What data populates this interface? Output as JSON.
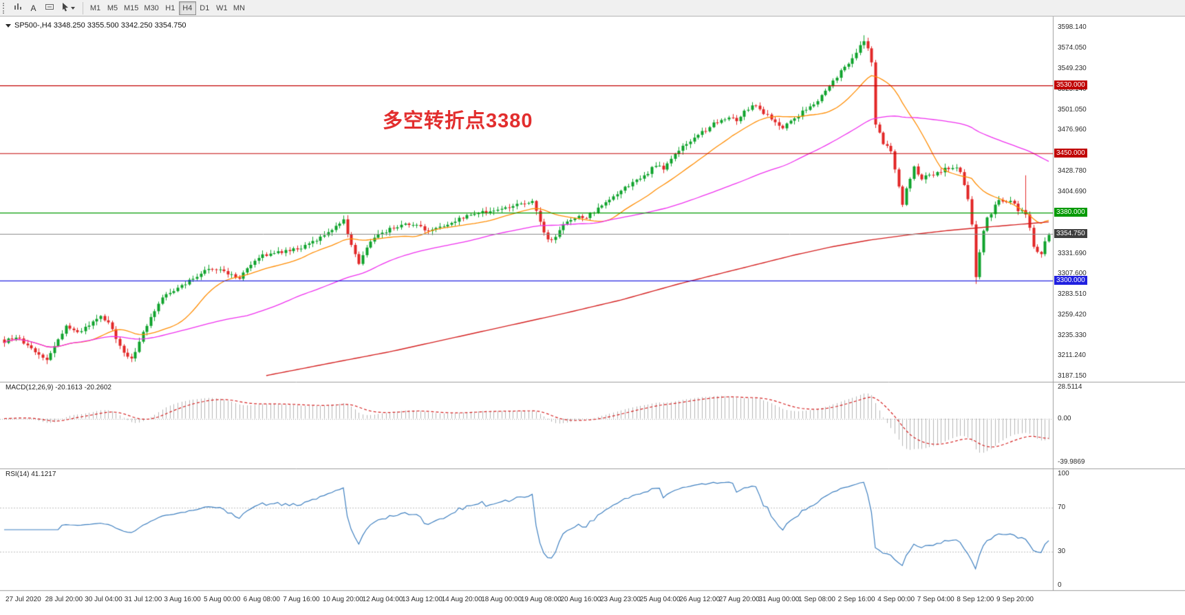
{
  "toolbar": {
    "text_tool_label": "A",
    "timeframes": [
      "M1",
      "M5",
      "M15",
      "M30",
      "H1",
      "H4",
      "D1",
      "W1",
      "MN"
    ],
    "active_timeframe": "H4"
  },
  "chart_data": {
    "type": "candlestick",
    "symbol": "SP500-",
    "timeframe": "H4",
    "header_text": "SP500-,H4  3348.250 3355.500 3342.250 3354.750",
    "ohlc_header": {
      "open": "3348.250",
      "high": "3355.500",
      "low": "3342.250",
      "close": "3354.750"
    },
    "annotation": {
      "text": "多空转折点3380",
      "color": "#e22e2e"
    },
    "bars": 272,
    "colors": {
      "up_candle": "#0fa32c",
      "down_candle": "#e22727",
      "ma_fast": "#ff8c00",
      "ma_mid": "#ee2eee",
      "ma_slow": "#d42020",
      "macd_hist": "#b4b4b4",
      "macd_signal": "#d42020",
      "rsi_line": "#3c7ebf",
      "current_price_line": "#8a8a8a"
    },
    "y_axis": {
      "min": 3187.15,
      "max": 3598.14,
      "labels": [
        "3598.140",
        "3574.050",
        "3549.230",
        "3525.140",
        "3501.050",
        "3476.960",
        "3428.780",
        "3404.690",
        "3331.690",
        "3307.600",
        "3283.510",
        "3259.420",
        "3235.330",
        "3211.240",
        "3187.150"
      ]
    },
    "x_axis": {
      "labels": [
        "27 Jul 2020",
        "28 Jul 20:00",
        "30 Jul 04:00",
        "31 Jul 12:00",
        "3 Aug 16:00",
        "5 Aug 00:00",
        "6 Aug 08:00",
        "7 Aug 16:00",
        "10 Aug 20:00",
        "12 Aug 04:00",
        "13 Aug 12:00",
        "14 Aug 20:00",
        "18 Aug 00:00",
        "19 Aug 08:00",
        "20 Aug 16:00",
        "23 Aug 23:00",
        "25 Aug 04:00",
        "26 Aug 12:00",
        "27 Aug 20:00",
        "31 Aug 00:00",
        "1 Sep 08:00",
        "2 Sep 16:00",
        "4 Sep 00:00",
        "7 Sep 04:00",
        "8 Sep 12:00",
        "9 Sep 20:00"
      ]
    },
    "hlines": [
      {
        "price": 3530.0,
        "label": "3530.000",
        "color": "#c00000"
      },
      {
        "price": 3450.0,
        "label": "3450.000",
        "color": "#c00000"
      },
      {
        "price": 3380.0,
        "label": "3380.000",
        "color": "#009a00"
      },
      {
        "price": 3300.0,
        "label": "3300.000",
        "color": "#2020e0"
      }
    ],
    "current_price": {
      "value": 3354.75,
      "label": "3354.750",
      "chip_color": "#3f3f3f"
    },
    "price_anchors": [
      [
        0,
        3228
      ],
      [
        3,
        3234
      ],
      [
        6,
        3222
      ],
      [
        8,
        3215
      ],
      [
        11,
        3207
      ],
      [
        14,
        3230
      ],
      [
        16,
        3246
      ],
      [
        19,
        3238
      ],
      [
        22,
        3247
      ],
      [
        25,
        3258
      ],
      [
        27,
        3250
      ],
      [
        29,
        3232
      ],
      [
        31,
        3214
      ],
      [
        33,
        3207
      ],
      [
        35,
        3228
      ],
      [
        38,
        3258
      ],
      [
        41,
        3280
      ],
      [
        44,
        3288
      ],
      [
        47,
        3296
      ],
      [
        50,
        3306
      ],
      [
        53,
        3315
      ],
      [
        56,
        3313
      ],
      [
        59,
        3306
      ],
      [
        61,
        3303
      ],
      [
        64,
        3318
      ],
      [
        66,
        3328
      ],
      [
        69,
        3332
      ],
      [
        72,
        3334
      ],
      [
        76,
        3337
      ],
      [
        79,
        3342
      ],
      [
        81,
        3348
      ],
      [
        84,
        3357
      ],
      [
        86,
        3365
      ],
      [
        88,
        3371
      ],
      [
        90,
        3341
      ],
      [
        92,
        3320
      ],
      [
        94,
        3338
      ],
      [
        96,
        3352
      ],
      [
        99,
        3358
      ],
      [
        101,
        3363
      ],
      [
        104,
        3366
      ],
      [
        107,
        3365
      ],
      [
        110,
        3358
      ],
      [
        113,
        3362
      ],
      [
        116,
        3369
      ],
      [
        119,
        3374
      ],
      [
        122,
        3379
      ],
      [
        125,
        3381
      ],
      [
        128,
        3384
      ],
      [
        131,
        3387
      ],
      [
        134,
        3390
      ],
      [
        137,
        3392
      ],
      [
        139,
        3369
      ],
      [
        141,
        3347
      ],
      [
        143,
        3352
      ],
      [
        145,
        3366
      ],
      [
        148,
        3374
      ],
      [
        151,
        3375
      ],
      [
        153,
        3381
      ],
      [
        155,
        3388
      ],
      [
        158,
        3398
      ],
      [
        161,
        3410
      ],
      [
        164,
        3418
      ],
      [
        166,
        3423
      ],
      [
        169,
        3437
      ],
      [
        171,
        3432
      ],
      [
        173,
        3442
      ],
      [
        176,
        3458
      ],
      [
        179,
        3469
      ],
      [
        182,
        3478
      ],
      [
        185,
        3488
      ],
      [
        188,
        3494
      ],
      [
        190,
        3490
      ],
      [
        192,
        3499
      ],
      [
        194,
        3507
      ],
      [
        196,
        3502
      ],
      [
        199,
        3490
      ],
      [
        202,
        3481
      ],
      [
        205,
        3491
      ],
      [
        208,
        3503
      ],
      [
        211,
        3513
      ],
      [
        214,
        3528
      ],
      [
        216,
        3541
      ],
      [
        218,
        3552
      ],
      [
        220,
        3563
      ],
      [
        222,
        3576
      ],
      [
        223,
        3583
      ],
      [
        224,
        3576
      ],
      [
        225,
        3560
      ],
      [
        226,
        3481
      ],
      [
        228,
        3462
      ],
      [
        230,
        3450
      ],
      [
        232,
        3410
      ],
      [
        233,
        3390
      ],
      [
        234,
        3412
      ],
      [
        236,
        3434
      ],
      [
        238,
        3421
      ],
      [
        240,
        3425
      ],
      [
        242,
        3429
      ],
      [
        244,
        3433
      ],
      [
        246,
        3436
      ],
      [
        248,
        3430
      ],
      [
        250,
        3398
      ],
      [
        251,
        3365
      ],
      [
        252,
        3303
      ],
      [
        253,
        3330
      ],
      [
        254,
        3356
      ],
      [
        255,
        3372
      ],
      [
        257,
        3390
      ],
      [
        258,
        3398
      ],
      [
        260,
        3393
      ],
      [
        262,
        3388
      ],
      [
        264,
        3382
      ],
      [
        265,
        3378
      ],
      [
        266,
        3360
      ],
      [
        267,
        3337
      ],
      [
        269,
        3331
      ],
      [
        270,
        3344
      ],
      [
        271,
        3355
      ]
    ],
    "spikes": [
      [
        223,
        "high",
        3589
      ],
      [
        252,
        "low",
        3296
      ],
      [
        265,
        "high",
        3424
      ]
    ],
    "ma_fast_window": 18,
    "ma_mid_window": 64,
    "ma_slow_anchors": [
      [
        68,
        3188
      ],
      [
        85,
        3203
      ],
      [
        100,
        3216
      ],
      [
        115,
        3231
      ],
      [
        130,
        3246
      ],
      [
        145,
        3261
      ],
      [
        160,
        3277
      ],
      [
        175,
        3296
      ],
      [
        190,
        3313
      ],
      [
        205,
        3330
      ],
      [
        215,
        3340
      ],
      [
        225,
        3348
      ],
      [
        235,
        3354
      ],
      [
        245,
        3359
      ],
      [
        255,
        3363
      ],
      [
        263,
        3366
      ],
      [
        271,
        3369
      ]
    ],
    "macd": {
      "label": "MACD(12,26,9) -20.1613 -20.2602",
      "params": [
        12,
        26,
        9
      ],
      "main_value": "-20.1613",
      "signal_value": "-20.2602",
      "axis_labels": [
        "28.5114",
        "0.00",
        "-39.9869"
      ]
    },
    "rsi": {
      "label": "RSI(14) 41.1217",
      "period": 14,
      "value": "41.1217",
      "axis_labels": [
        "100",
        "70",
        "30",
        "0"
      ],
      "levels": [
        70,
        30
      ]
    }
  }
}
